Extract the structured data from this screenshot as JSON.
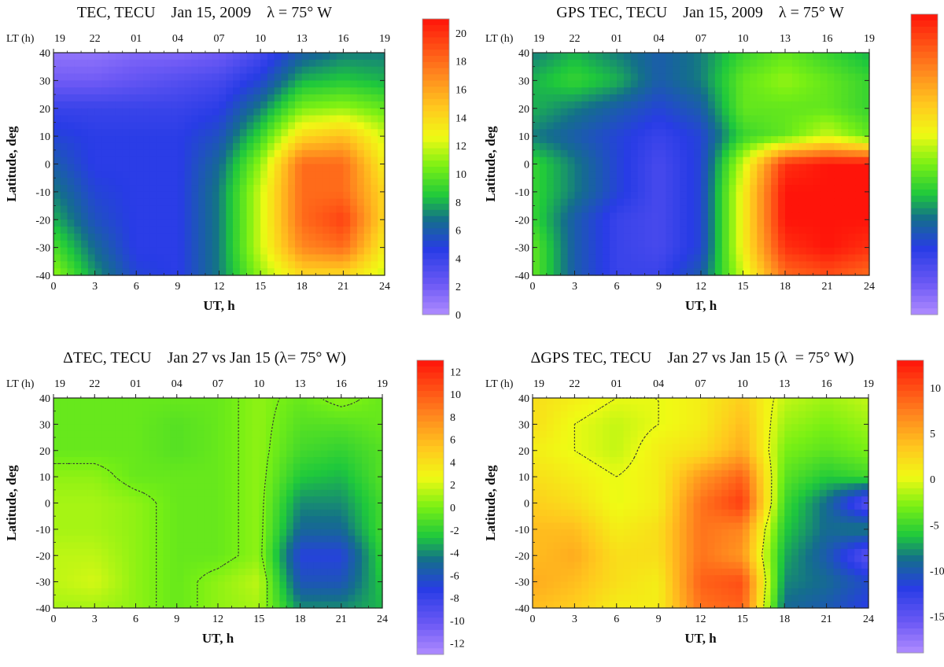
{
  "chart_data": [
    {
      "type": "heatmap",
      "title": "TEC, TECU    Jan 15, 2009    λ = 75° W",
      "xlabel": "UT, h",
      "ylabel": "Latitude, deg",
      "top_axis_label": "LT (h)",
      "x_ticks": [
        0,
        3,
        6,
        9,
        12,
        15,
        18,
        21,
        24
      ],
      "x_tick_labels": [
        "0",
        "3",
        "6",
        "9",
        "12",
        "15",
        "18",
        "21",
        "24"
      ],
      "top_ticks": [
        "19",
        "22",
        "01",
        "04",
        "07",
        "10",
        "13",
        "16",
        "19"
      ],
      "y_ticks": [
        40,
        30,
        20,
        10,
        0,
        -10,
        -20,
        -30,
        -40
      ],
      "y_tick_labels": [
        "40",
        "30",
        "20",
        "10",
        "0",
        "-10",
        "-20",
        "-30",
        "-40"
      ],
      "xlim": [
        0,
        24
      ],
      "ylim": [
        -40,
        40
      ],
      "colorbar": {
        "min": 0,
        "max": 21,
        "ticks": [
          20,
          18,
          16,
          14,
          12,
          10,
          8,
          6,
          4,
          2,
          0
        ],
        "tick_labels": [
          "20",
          "18",
          "16",
          "14",
          "12",
          "10",
          "8",
          "6",
          "4",
          "2",
          "0"
        ],
        "colormap": "rainbow"
      },
      "contour_lines": false,
      "grid_x": [
        0,
        3,
        6,
        9,
        12,
        15,
        18,
        21,
        24
      ],
      "grid_y": [
        40,
        30,
        20,
        10,
        0,
        -10,
        -20,
        -30,
        -40
      ],
      "z": [
        [
          1,
          1,
          1.5,
          1.5,
          2,
          3.5,
          6,
          7,
          7
        ],
        [
          2,
          2,
          2.5,
          3,
          3.5,
          5,
          8,
          8.5,
          8
        ],
        [
          4,
          4,
          4,
          4,
          4.5,
          7,
          10.5,
          11,
          10
        ],
        [
          5,
          4.5,
          4.5,
          4.5,
          5.5,
          9,
          14,
          15,
          12
        ],
        [
          6,
          4.5,
          4.5,
          4.5,
          6.5,
          11,
          18,
          18,
          13
        ],
        [
          7,
          5,
          4.5,
          4.5,
          7,
          12,
          18,
          18,
          14
        ],
        [
          8,
          5.5,
          4.5,
          4.5,
          7,
          12,
          18,
          19.5,
          14
        ],
        [
          9.5,
          6.5,
          4.5,
          4.5,
          7,
          12,
          17,
          18,
          13
        ],
        [
          11,
          7.5,
          5,
          4.5,
          7,
          11,
          14,
          14,
          12
        ]
      ]
    },
    {
      "type": "heatmap",
      "title": "GPS TEC, TECU    Jan 15, 2009    λ = 75° W",
      "xlabel": "UT, h",
      "ylabel": "Latitude, deg",
      "top_axis_label": "LT (h)",
      "x_ticks": [
        0,
        3,
        6,
        9,
        12,
        15,
        18,
        21,
        24
      ],
      "x_tick_labels": [
        "0",
        "3",
        "6",
        "9",
        "12",
        "15",
        "18",
        "21",
        "24"
      ],
      "top_ticks": [
        "19",
        "22",
        "01",
        "04",
        "07",
        "10",
        "13",
        "16",
        "19"
      ],
      "y_ticks": [
        40,
        30,
        20,
        10,
        0,
        -10,
        -20,
        -30,
        -40
      ],
      "y_tick_labels": [
        "40",
        "30",
        "20",
        "10",
        "0",
        "-10",
        "-20",
        "-30",
        "-40"
      ],
      "xlim": [
        0,
        24
      ],
      "ylim": [
        -40,
        40
      ],
      "colorbar": {
        "min": 0,
        "max": 21,
        "ticks": [
          20,
          18,
          16,
          14,
          12,
          10,
          8,
          6,
          4,
          2,
          0
        ],
        "tick_labels": [
          "20",
          "18",
          "16",
          "14",
          "12",
          "10",
          "8",
          "6",
          "4",
          "2",
          "0"
        ],
        "colormap": "rainbow"
      },
      "contour_lines": false,
      "grid_x": [
        0,
        3,
        6,
        9,
        12,
        15,
        18,
        21,
        24
      ],
      "grid_y": [
        40,
        30,
        20,
        10,
        0,
        -10,
        -20,
        -30,
        -40
      ],
      "z": [
        [
          7,
          8,
          7,
          6,
          7,
          9,
          10,
          9,
          8
        ],
        [
          8,
          9,
          8,
          6,
          7,
          10,
          11,
          10,
          9
        ],
        [
          8,
          7,
          6,
          5,
          6,
          10,
          10,
          10,
          9
        ],
        [
          7,
          6,
          5,
          4,
          5,
          9,
          10,
          12,
          10
        ],
        [
          9,
          7,
          5,
          3.5,
          5,
          12,
          20,
          21,
          21
        ],
        [
          9,
          7,
          5,
          3.5,
          5,
          13,
          21,
          21,
          21
        ],
        [
          9,
          6,
          4,
          3.5,
          5,
          13,
          21,
          21,
          21
        ],
        [
          10,
          6,
          4,
          3.5,
          5,
          13,
          20,
          21,
          20
        ],
        [
          10,
          6,
          4,
          4,
          6,
          12,
          18,
          19,
          18
        ]
      ]
    },
    {
      "type": "heatmap",
      "title": "ΔTEC, TECU    Jan 27 vs Jan 15 (λ= 75° W)",
      "xlabel": "UT, h",
      "ylabel": "Latitude, deg",
      "top_axis_label": "LT (h)",
      "x_ticks": [
        0,
        3,
        6,
        9,
        12,
        15,
        18,
        21,
        24
      ],
      "x_tick_labels": [
        "0",
        "3",
        "6",
        "9",
        "12",
        "15",
        "18",
        "21",
        "24"
      ],
      "top_ticks": [
        "19",
        "22",
        "01",
        "04",
        "07",
        "10",
        "13",
        "16",
        "19"
      ],
      "y_ticks": [
        40,
        30,
        20,
        10,
        0,
        -10,
        -20,
        -30,
        -40
      ],
      "y_tick_labels": [
        "40",
        "30",
        "20",
        "10",
        "0",
        "-10",
        "-20",
        "-30",
        "-40"
      ],
      "xlim": [
        0,
        24
      ],
      "ylim": [
        -40,
        40
      ],
      "colorbar": {
        "min": -13,
        "max": 13,
        "ticks": [
          12,
          10,
          8,
          6,
          4,
          2,
          0,
          -2,
          -4,
          -6,
          -8,
          -10,
          -12
        ],
        "tick_labels": [
          "12",
          "10",
          "8",
          "6",
          "4",
          "2",
          "0",
          "-2",
          "-4",
          "-6",
          "-8",
          "-10",
          "-12"
        ],
        "colormap": "rainbow"
      },
      "contour_lines": true,
      "grid_x": [
        0,
        3,
        6,
        9,
        12,
        15,
        18,
        21,
        24
      ],
      "grid_y": [
        40,
        30,
        20,
        10,
        0,
        -10,
        -20,
        -30,
        -40
      ],
      "z": [
        [
          -0.5,
          -0.5,
          -0.5,
          -0.5,
          -0.5,
          0.5,
          -0.5,
          0.5,
          -0.5
        ],
        [
          -0.5,
          -0.5,
          -0.5,
          -1,
          -0.5,
          0.5,
          -1,
          -1,
          -0.5
        ],
        [
          -0.5,
          -0.5,
          -0.5,
          -1,
          -0.5,
          0.5,
          -1.5,
          -2,
          -1
        ],
        [
          0.5,
          0.5,
          -0.5,
          -0.5,
          -0.5,
          0.5,
          -2.5,
          -3,
          -1
        ],
        [
          1,
          1,
          0.5,
          -0.5,
          -0.5,
          0.5,
          -4,
          -4,
          -1.5
        ],
        [
          1,
          1,
          0.5,
          -0.5,
          -0.5,
          0.5,
          -5,
          -5,
          -1.5
        ],
        [
          1.5,
          1.5,
          0.5,
          -0.5,
          -0.5,
          0.5,
          -7,
          -7,
          -2
        ],
        [
          1.5,
          2,
          0.5,
          -0.5,
          0.5,
          1.5,
          -6,
          -6,
          -2.5
        ],
        [
          1,
          1,
          0.5,
          -0.5,
          0.5,
          1,
          -4,
          -4,
          -3
        ]
      ]
    },
    {
      "type": "heatmap",
      "title": "ΔGPS TEC, TECU    Jan 27 vs Jan 15 (λ  = 75° W)",
      "xlabel": "UT, h",
      "ylabel": "Latitude, deg",
      "top_axis_label": "LT (h)",
      "x_ticks": [
        0,
        3,
        6,
        9,
        12,
        15,
        18,
        21,
        24
      ],
      "x_tick_labels": [
        "0",
        "3",
        "6",
        "9",
        "12",
        "15",
        "18",
        "21",
        "24"
      ],
      "top_ticks": [
        "19",
        "22",
        "01",
        "04",
        "07",
        "10",
        "13",
        "16",
        "19"
      ],
      "y_ticks": [
        40,
        30,
        20,
        10,
        0,
        -10,
        -20,
        -30,
        -40
      ],
      "y_tick_labels": [
        "40",
        "30",
        "20",
        "10",
        "0",
        "-10",
        "-20",
        "-30",
        "-40"
      ],
      "xlim": [
        0,
        24
      ],
      "ylim": [
        -40,
        40
      ],
      "colorbar": {
        "min": -19,
        "max": 13,
        "ticks": [
          10,
          5,
          0,
          -5,
          -10,
          -15
        ],
        "tick_labels": [
          "10",
          "5",
          "0",
          "-5",
          "-10",
          "-15"
        ],
        "colormap": "rainbow"
      },
      "contour_lines": true,
      "grid_x": [
        0,
        3,
        6,
        9,
        12,
        15,
        18,
        21,
        24
      ],
      "grid_y": [
        40,
        30,
        20,
        10,
        0,
        -10,
        -20,
        -30,
        -40
      ],
      "z": [
        [
          2,
          1,
          0,
          0,
          1,
          3,
          -1,
          -2,
          -1
        ],
        [
          2,
          0,
          -1,
          0,
          1,
          4,
          -2,
          -3,
          -2
        ],
        [
          1,
          0,
          -1,
          1,
          2,
          5,
          -3,
          -4,
          -3
        ],
        [
          2,
          1,
          0,
          1,
          6,
          9,
          -4,
          -6,
          -5
        ],
        [
          3,
          2,
          0,
          1,
          8,
          11,
          -5,
          -9,
          -15
        ],
        [
          4,
          4,
          1,
          2,
          8,
          7,
          -6,
          -9,
          -8
        ],
        [
          4,
          5,
          2,
          2,
          8,
          6,
          -7,
          -10,
          -15
        ],
        [
          5,
          4,
          2,
          1,
          9,
          10,
          -8,
          -9,
          -11
        ],
        [
          4,
          3,
          1,
          1,
          8,
          9,
          -9,
          -10,
          -12
        ]
      ]
    }
  ]
}
